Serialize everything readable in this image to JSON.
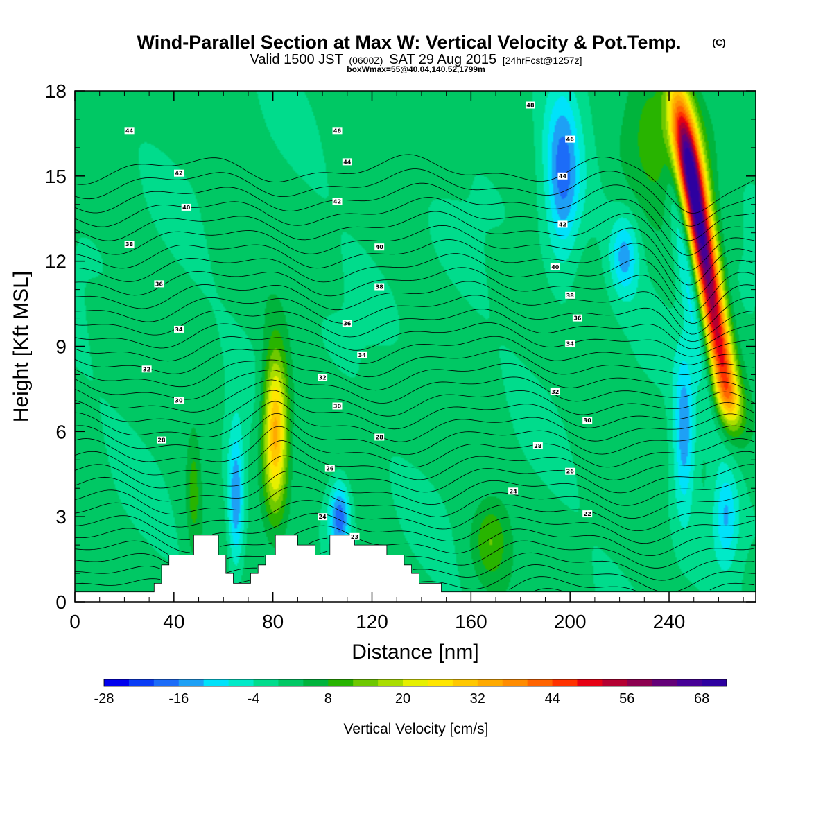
{
  "header": {
    "title": "Wind-Parallel Section at Max W: Vertical Velocity & Pot.Temp.",
    "copyright": "(C)",
    "valid_prefix": "Valid 1500 JST",
    "valid_utc": "(0600Z)",
    "valid_date": "SAT 29 Aug 2015",
    "forecast": "[24hrFcst@1257z]",
    "box_info": "boxWmax=55@40.04,140.52,1799m"
  },
  "chart_data": {
    "type": "heatmap",
    "xlabel": "Distance [nm]",
    "ylabel": "Height [Kft MSL]",
    "xlim": [
      0,
      275
    ],
    "ylim": [
      0,
      18
    ],
    "xticks": [
      0,
      40,
      80,
      120,
      160,
      200,
      240
    ],
    "yticks": [
      0,
      3,
      6,
      9,
      12,
      15,
      18
    ],
    "colorbar": {
      "label": "Vertical Velocity [cm/s]",
      "min": -28,
      "max": 72,
      "step": 4,
      "tick_labels": [
        "-28",
        "-16",
        "-4",
        "8",
        "20",
        "32",
        "44",
        "56",
        "68"
      ],
      "tick_values": [
        -28,
        -16,
        -4,
        8,
        20,
        32,
        44,
        56,
        68
      ],
      "colors": [
        "#0000ee",
        "#0a3cf5",
        "#1c6cf8",
        "#1ea0f5",
        "#00e2fa",
        "#00eac8",
        "#00dc8c",
        "#00c864",
        "#00b43c",
        "#28b400",
        "#6ec800",
        "#aade00",
        "#e6f000",
        "#ffe600",
        "#ffc800",
        "#ffaa00",
        "#ff8c00",
        "#ff6400",
        "#ff3200",
        "#e60014",
        "#b40032",
        "#8c0050",
        "#640078",
        "#460096",
        "#2d00a0"
      ]
    },
    "w_features": [
      {
        "x": 81,
        "z": 6.0,
        "sx": 3.4,
        "sz": 1.9,
        "w": 34
      },
      {
        "x": 65,
        "z": 3.6,
        "sx": 2.3,
        "sz": 1.8,
        "w": -17
      },
      {
        "x": 107,
        "z": 3.0,
        "sx": 3.0,
        "sz": 0.9,
        "w": -20
      },
      {
        "x": 197,
        "z": 15.0,
        "sx": 5.0,
        "sz": 2.2,
        "w": -18
      },
      {
        "x": 222,
        "z": 12.2,
        "sx": 4.0,
        "sz": 1.0,
        "w": -14
      },
      {
        "x": 246,
        "z": 6.0,
        "sx": 3.0,
        "sz": 2.0,
        "w": -16
      },
      {
        "x": 263,
        "z": 3.0,
        "sx": 3.5,
        "sz": 1.2,
        "w": -12
      },
      {
        "x": 168,
        "z": 2.2,
        "sx": 5.0,
        "sz": 1.0,
        "w": 10
      },
      {
        "x": 240,
        "z": 16.5,
        "sx": 12.0,
        "sz": 1.6,
        "w": 12
      },
      {
        "x": 48,
        "z": 4.0,
        "sx": 2.0,
        "sz": 1.6,
        "w": 8
      }
    ],
    "updraft_band": {
      "x_top": 250,
      "x_bottom": 263,
      "z_top": 14.5,
      "z_bottom": 7.5,
      "width": 3.6,
      "peak": 70
    },
    "terrain": [
      [
        0,
        0.35
      ],
      [
        32,
        0.35
      ],
      [
        32,
        0.65
      ],
      [
        35,
        0.65
      ],
      [
        35,
        1.3
      ],
      [
        38,
        1.3
      ],
      [
        38,
        1.65
      ],
      [
        48,
        1.65
      ],
      [
        48,
        2.35
      ],
      [
        58,
        2.35
      ],
      [
        58,
        1.65
      ],
      [
        61,
        1.65
      ],
      [
        61,
        1.0
      ],
      [
        64,
        1.0
      ],
      [
        64,
        0.65
      ],
      [
        71,
        0.65
      ],
      [
        71,
        1.0
      ],
      [
        74,
        1.0
      ],
      [
        74,
        1.3
      ],
      [
        77,
        1.3
      ],
      [
        77,
        1.65
      ],
      [
        81,
        1.65
      ],
      [
        81,
        2.35
      ],
      [
        90,
        2.35
      ],
      [
        90,
        2.0
      ],
      [
        97,
        2.0
      ],
      [
        97,
        1.65
      ],
      [
        103,
        1.65
      ],
      [
        103,
        2.35
      ],
      [
        113,
        2.35
      ],
      [
        113,
        2.0
      ],
      [
        126,
        2.0
      ],
      [
        126,
        1.65
      ],
      [
        133,
        1.65
      ],
      [
        133,
        1.3
      ],
      [
        136,
        1.3
      ],
      [
        136,
        1.0
      ],
      [
        139,
        1.0
      ],
      [
        139,
        0.65
      ],
      [
        148,
        0.65
      ],
      [
        148,
        0.35
      ],
      [
        275,
        0.35
      ]
    ],
    "theta_contours": {
      "min": 18,
      "max": 51,
      "interval": 1,
      "labels": [
        {
          "text": "48",
          "x": 184,
          "z": 17.5
        },
        {
          "text": "46",
          "x": 106,
          "z": 16.6
        },
        {
          "text": "46",
          "x": 200,
          "z": 16.3
        },
        {
          "text": "44",
          "x": 22,
          "z": 16.6
        },
        {
          "text": "44",
          "x": 110,
          "z": 15.5
        },
        {
          "text": "44",
          "x": 197,
          "z": 15.0
        },
        {
          "text": "42",
          "x": 42,
          "z": 15.1
        },
        {
          "text": "42",
          "x": 106,
          "z": 14.1
        },
        {
          "text": "42",
          "x": 197,
          "z": 13.3
        },
        {
          "text": "40",
          "x": 45,
          "z": 13.9
        },
        {
          "text": "40",
          "x": 123,
          "z": 12.5
        },
        {
          "text": "40",
          "x": 194,
          "z": 11.8
        },
        {
          "text": "38",
          "x": 22,
          "z": 12.6
        },
        {
          "text": "38",
          "x": 123,
          "z": 11.1
        },
        {
          "text": "38",
          "x": 200,
          "z": 10.8
        },
        {
          "text": "36",
          "x": 34,
          "z": 11.2
        },
        {
          "text": "36",
          "x": 110,
          "z": 9.8
        },
        {
          "text": "36",
          "x": 203,
          "z": 10.0
        },
        {
          "text": "34",
          "x": 42,
          "z": 9.6
        },
        {
          "text": "34",
          "x": 116,
          "z": 8.7
        },
        {
          "text": "34",
          "x": 200,
          "z": 9.1
        },
        {
          "text": "32",
          "x": 29,
          "z": 8.2
        },
        {
          "text": "32",
          "x": 100,
          "z": 7.9
        },
        {
          "text": "32",
          "x": 194,
          "z": 7.4
        },
        {
          "text": "30",
          "x": 42,
          "z": 7.1
        },
        {
          "text": "30",
          "x": 106,
          "z": 6.9
        },
        {
          "text": "30",
          "x": 207,
          "z": 6.4
        },
        {
          "text": "28",
          "x": 35,
          "z": 5.7
        },
        {
          "text": "28",
          "x": 123,
          "z": 5.8
        },
        {
          "text": "28",
          "x": 187,
          "z": 5.5
        },
        {
          "text": "26",
          "x": 103,
          "z": 4.7
        },
        {
          "text": "26",
          "x": 200,
          "z": 4.6
        },
        {
          "text": "24",
          "x": 100,
          "z": 3.0
        },
        {
          "text": "24",
          "x": 177,
          "z": 3.9
        },
        {
          "text": "22",
          "x": 207,
          "z": 3.1
        },
        {
          "text": "23",
          "x": 113,
          "z": 2.3
        }
      ]
    }
  }
}
